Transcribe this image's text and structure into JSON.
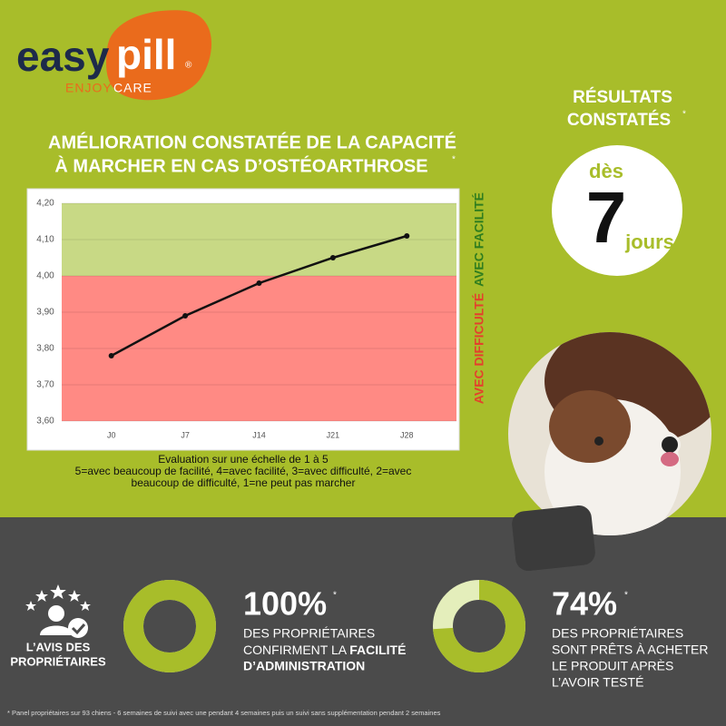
{
  "logo": {
    "easy": "easy",
    "pill": "pill",
    "reg": "®",
    "enjoy": "ENJOY",
    "care": "CARE"
  },
  "chart_data": {
    "type": "line",
    "title_lines": [
      "AMÉLIORATION CONSTATÉE DE LA CAPACITÉ",
      "À MARCHER EN CAS D’OSTÉOARTHROSE"
    ],
    "title_note": "*",
    "categories": [
      "J0",
      "J7",
      "J14",
      "J21",
      "J28"
    ],
    "values": [
      3.78,
      3.89,
      3.98,
      4.05,
      4.11
    ],
    "color": "#111111",
    "ylim": [
      3.6,
      4.2
    ],
    "yticks": [
      {
        "value": 3.6,
        "label": "3,60"
      },
      {
        "value": 3.7,
        "label": "3,70"
      },
      {
        "value": 3.8,
        "label": "3,80"
      },
      {
        "value": 3.9,
        "label": "3,90"
      },
      {
        "value": 4.0,
        "label": "4,00"
      },
      {
        "value": 4.1,
        "label": "4,10"
      },
      {
        "value": 4.2,
        "label": "4,20"
      }
    ],
    "grid": true,
    "zones": [
      {
        "label": "AVEC FACILITÉ",
        "from": 4.0,
        "to": 4.2,
        "color": "#c8d985",
        "text_color": "#2f7d1e"
      },
      {
        "label": "AVEC DIFFICULTÉ",
        "from": 3.6,
        "to": 4.0,
        "color": "#ff8a84",
        "text_color": "#e4402c"
      }
    ],
    "caption": [
      "Evaluation sur une échelle de 1 à 5",
      "5=avec beaucoup de facilité, 4=avec facilité, 3=avec difficulté, 2=avec",
      "beaucoup de difficulté, 1=ne peut pas marcher"
    ]
  },
  "results": {
    "title_lines": [
      "RÉSULTATS",
      "CONSTATÉS"
    ],
    "note": "*",
    "prefix": "dès",
    "number": 7,
    "unit": "jours"
  },
  "owners": {
    "label_lines": [
      "L’AVIS DES",
      "PROPRIÉTAIRES"
    ]
  },
  "stats": [
    {
      "value": 100,
      "label": "100%",
      "note": "*",
      "lines": [
        "DES PROPRIÉTAIRES",
        "CONFIRMENT LA",
        "FACILITÉ",
        "D’ADMINISTRATION"
      ]
    },
    {
      "value": 74,
      "label": "74%",
      "note": "*",
      "lines": [
        "DES PROPRIÉTAIRES",
        "SONT PRÊTS À ACHETER",
        "LE PRODUIT APRÈS",
        "L’AVOIR TESTÉ"
      ]
    }
  ],
  "footnote": "* Panel propriétaires sur 93 chiens - 6 semaines de suivi avec une pendant 4 semaines puis un suivi sans supplémentation pendant 2 semaines"
}
